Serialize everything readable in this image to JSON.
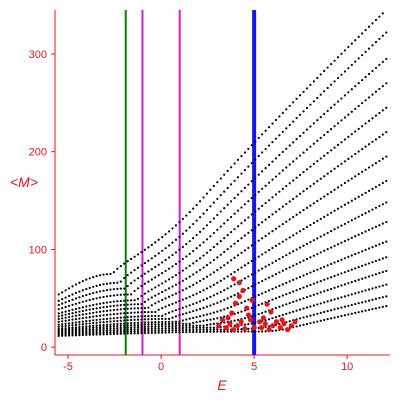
{
  "chart_data": {
    "type": "scatter",
    "xlabel": "E",
    "ylabel": "<M>",
    "xlim": [
      -5.7,
      12.3
    ],
    "ylim": [
      -8,
      345
    ],
    "x_ticks": [
      -5,
      0,
      5,
      10
    ],
    "y_ticks": [
      0,
      100,
      200,
      300
    ],
    "grid": false,
    "colors": {
      "axis": "#e8141c",
      "points": "#000000",
      "highlight_points": "#e8141c",
      "line_green": "#0b7a0b",
      "line_magenta": "#d21ed2",
      "line_blue": "#1414f0"
    },
    "vertical_lines": [
      {
        "x": -1.9,
        "color": "#0b7a0b",
        "width": 2
      },
      {
        "x": -1.0,
        "color": "#d21ed2",
        "width": 2
      },
      {
        "x": 1.0,
        "color": "#d21ed2",
        "width": 2
      },
      {
        "x": 5.0,
        "color": "#1414f0",
        "width": 4
      }
    ],
    "curves": [
      {
        "peak": [
          -2.6,
          75
        ],
        "end": [
          12.1,
          345
        ]
      },
      {
        "peak": [
          -2.2,
          66
        ],
        "end": [
          12.1,
          322
        ]
      },
      {
        "peak": [
          -1.9,
          60
        ],
        "end": [
          12.1,
          295
        ]
      },
      {
        "peak": [
          -1.6,
          54
        ],
        "end": [
          12.1,
          270
        ]
      },
      {
        "peak": [
          -1.3,
          48
        ],
        "end": [
          12.1,
          245
        ]
      },
      {
        "peak": [
          -1.0,
          44
        ],
        "end": [
          12.1,
          220
        ]
      },
      {
        "peak": [
          -0.7,
          40
        ],
        "end": [
          12.1,
          195
        ]
      },
      {
        "peak": [
          -0.3,
          36
        ],
        "end": [
          12.1,
          170
        ]
      },
      {
        "peak": [
          0.1,
          32
        ],
        "end": [
          12.1,
          148
        ]
      },
      {
        "peak": [
          0.5,
          29
        ],
        "end": [
          12.1,
          128
        ]
      },
      {
        "peak": [
          1.0,
          26
        ],
        "end": [
          12.1,
          108
        ]
      },
      {
        "peak": [
          1.6,
          24
        ],
        "end": [
          12.1,
          92
        ]
      },
      {
        "peak": [
          2.3,
          22
        ],
        "end": [
          12.1,
          78
        ]
      },
      {
        "peak": [
          3.0,
          20
        ],
        "end": [
          12.1,
          64
        ]
      },
      {
        "peak": [
          3.8,
          18
        ],
        "end": [
          12.1,
          52
        ]
      },
      {
        "peak": [
          4.6,
          16
        ],
        "end": [
          12.1,
          42
        ]
      }
    ],
    "red_cluster": [
      [
        3.5,
        20
      ],
      [
        3.7,
        24
      ],
      [
        3.9,
        18
      ],
      [
        4.1,
        22
      ],
      [
        4.3,
        26
      ],
      [
        4.5,
        19
      ],
      [
        3.6,
        30
      ],
      [
        3.8,
        35
      ],
      [
        4.0,
        45
      ],
      [
        4.2,
        52
      ],
      [
        4.4,
        58
      ],
      [
        4.2,
        66
      ],
      [
        3.9,
        70
      ],
      [
        4.6,
        40
      ],
      [
        4.8,
        28
      ],
      [
        4.7,
        33
      ],
      [
        5.4,
        20
      ],
      [
        5.6,
        24
      ],
      [
        5.8,
        18
      ],
      [
        6.0,
        22
      ],
      [
        6.2,
        26
      ],
      [
        6.4,
        20
      ],
      [
        6.6,
        24
      ],
      [
        6.8,
        18
      ],
      [
        7.0,
        22
      ],
      [
        7.2,
        26
      ],
      [
        5.5,
        30
      ],
      [
        5.7,
        44
      ],
      [
        5.9,
        36
      ],
      [
        3.3,
        28
      ],
      [
        3.1,
        22
      ],
      [
        4.9,
        48
      ],
      [
        5.3,
        26
      ],
      [
        6.5,
        28
      ],
      [
        5.0,
        20
      ]
    ]
  }
}
